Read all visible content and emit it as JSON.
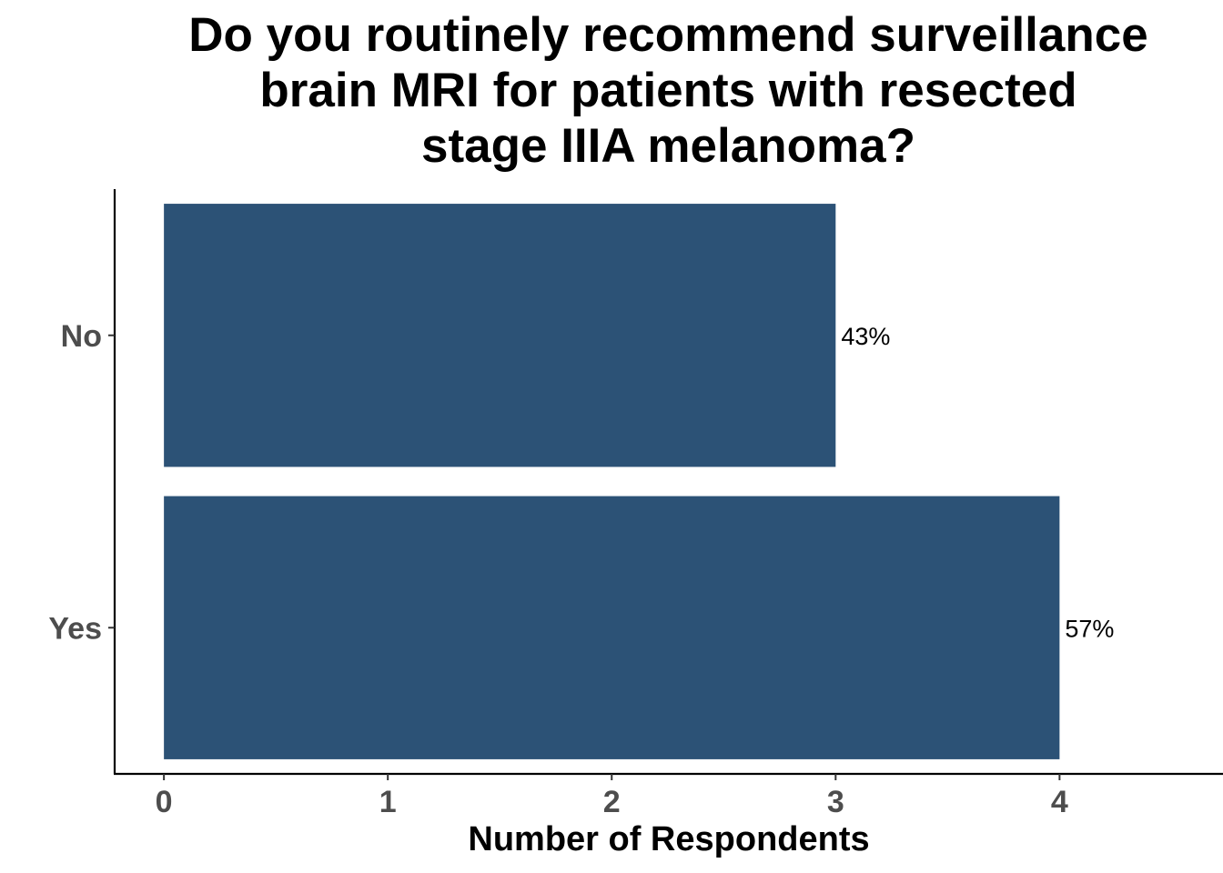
{
  "chart_data": {
    "type": "bar",
    "orientation": "horizontal",
    "title_lines": [
      "Do you routinely recommend surveillance",
      "brain MRI for patients with resected",
      "stage IIIA melanoma?"
    ],
    "categories": [
      "No",
      "Yes"
    ],
    "values": [
      3,
      4
    ],
    "data_labels": [
      "43%",
      "57%"
    ],
    "xlabel": "Number of Respondents",
    "ylabel": "",
    "x_ticks": [
      0,
      1,
      2,
      3,
      4
    ],
    "xlim": [
      -0.22,
      4.73
    ],
    "grid": false,
    "legend": "none",
    "bar_color": "#2c5276"
  }
}
